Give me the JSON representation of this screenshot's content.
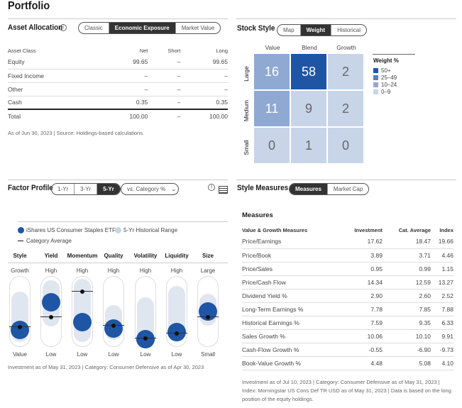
{
  "title": "Portfolio",
  "asset_allocation": {
    "title": "Asset Allocation",
    "tabs": [
      "Classic",
      "Economic Exposure",
      "Market Value"
    ],
    "active_tab": "Economic Exposure",
    "columns": [
      "Asset Class",
      "Net",
      "Short",
      "Long"
    ],
    "rows": [
      [
        "Equity",
        "99.65",
        "–",
        "99.65"
      ],
      [
        "Fixed Income",
        "–",
        "–",
        "–"
      ],
      [
        "Other",
        "–",
        "–",
        "–"
      ],
      [
        "Cash",
        "0.35",
        "–",
        "0.35"
      ]
    ],
    "total": [
      "Total",
      "100.00",
      "–",
      "100.00"
    ],
    "note": "As of Jun 30, 2023 | Source: Holdings-based calculations."
  },
  "stock_style": {
    "title": "Stock Style",
    "tabs": [
      "Map",
      "Weight",
      "Historical"
    ],
    "active_tab": "Weight",
    "columns": [
      "Value",
      "Blend",
      "Growth"
    ],
    "rows": [
      "Large",
      "Medium",
      "Small"
    ],
    "grid": [
      [
        16,
        58,
        2
      ],
      [
        11,
        9,
        2
      ],
      [
        0,
        1,
        0
      ]
    ],
    "legend_title": "Weight %",
    "legend": [
      {
        "label": "50+",
        "color": "#1f55a5"
      },
      {
        "label": "25–49",
        "color": "#5a80bd"
      },
      {
        "label": "10–24",
        "color": "#8fa9d3"
      },
      {
        "label": "0–9",
        "color": "#c8d5e8"
      }
    ]
  },
  "factor_profile": {
    "title": "Factor Profile",
    "tabs": [
      "1-Yr",
      "3-Yr",
      "5-Yr"
    ],
    "active_tab": "5-Yr",
    "dropdown": "vs. Category %",
    "legend": {
      "fund": "iShares US Consumer Staples ETF",
      "range": "5-Yr Historical Range",
      "avg": "Category Average"
    },
    "factors": [
      {
        "name": "Style",
        "high": "Growth",
        "low": "Value",
        "range": [
          6,
          77
        ],
        "fund": 24,
        "avg": 29
      },
      {
        "name": "Yield",
        "high": "High",
        "low": "Low",
        "range": [
          28,
          93
        ],
        "fund": 63,
        "avg": 43
      },
      {
        "name": "Momentum",
        "high": "High",
        "low": "Low",
        "range": [
          6,
          95
        ],
        "fund": 35,
        "avg": 79
      },
      {
        "name": "Quality",
        "high": "High",
        "low": "Low",
        "range": [
          9,
          58
        ],
        "fund": 26,
        "avg": 31
      },
      {
        "name": "Volatility",
        "high": "High",
        "low": "Low",
        "range": [
          5,
          69
        ],
        "fund": 11,
        "avg": 13
      },
      {
        "name": "Liquidity",
        "high": "High",
        "low": "Low",
        "range": [
          6,
          85
        ],
        "fund": 21,
        "avg": 20
      },
      {
        "name": "Size",
        "high": "Large",
        "low": "Small",
        "range": [
          29,
          74
        ],
        "fund": 50,
        "avg": 43
      }
    ],
    "note": "Investment as of May 31, 2023 | Category: Consumer Defensive as of Apr 30, 2023"
  },
  "style_measures": {
    "title": "Style Measures",
    "tabs": [
      "Measures",
      "Market Cap"
    ],
    "active_tab": "Measures",
    "subtitle": "Measures",
    "columns": [
      "Value & Growth Measures",
      "Investment",
      "Cat. Average",
      "Index"
    ],
    "rows": [
      [
        "Price/Earnings",
        "17.62",
        "18.47",
        "19.66"
      ],
      [
        "Price/Book",
        "3.89",
        "3.71",
        "4.46"
      ],
      [
        "Price/Sales",
        "0.95",
        "0.99",
        "1.15"
      ],
      [
        "Price/Cash Flow",
        "14.34",
        "12.59",
        "13.27"
      ],
      [
        "Dividend Yield %",
        "2.90",
        "2.60",
        "2.52"
      ],
      [
        "Long-Term Earnings %",
        "7.78",
        "7.85",
        "7.88"
      ],
      [
        "Historical Earnings %",
        "7.59",
        "9.35",
        "6.33"
      ],
      [
        "Sales Growth %",
        "10.06",
        "10.10",
        "9.91"
      ],
      [
        "Cash-Flow Growth %",
        "-0.55",
        "-6.90",
        "-9.73"
      ],
      [
        "Book-Value Growth %",
        "4.48",
        "5.08",
        "4.10"
      ]
    ],
    "note": "Investment as of Jul 10, 2023 | Category: Consumer Defensive as of May 31, 2023 | Index: Morningstar US Cons Def TR USD as of May 31, 2023 | Data is based on the long position of the equity holdings."
  }
}
